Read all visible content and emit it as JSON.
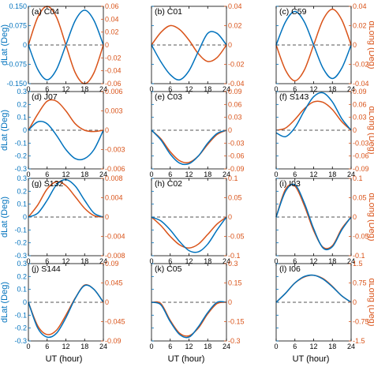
{
  "colors": {
    "dlat": "#0072BD",
    "dlong": "#D95319",
    "axis": "#000000",
    "zero": "#555555"
  },
  "labels": {
    "xlabel": "UT (hour)",
    "ylabel_left": "dLat (Deg)",
    "ylabel_right": "dLong (Deg)"
  },
  "chart_data": [
    {
      "type": "line",
      "title": "(a) C04",
      "x": [
        0,
        24
      ],
      "xticks": [
        "0",
        "6",
        "12",
        "18",
        "24"
      ],
      "left": {
        "ylim": [
          -0.15,
          0.15
        ],
        "ticks": [
          -0.15,
          -0.075,
          0,
          0.075,
          0.15
        ],
        "tick_labels": [
          "-0.150",
          "-0.075",
          "0",
          "0.075",
          "0.150"
        ]
      },
      "right": {
        "ylim": [
          -0.06,
          0.06
        ],
        "ticks": [
          -0.06,
          -0.04,
          -0.02,
          0,
          0.02,
          0.04,
          0.06
        ],
        "tick_labels": [
          "-0.06",
          "-0.04",
          "-0.02",
          "0",
          "0.02",
          "0.04",
          "0.06"
        ]
      },
      "dlat": {
        "x": [
          0,
          3,
          6,
          9,
          12,
          15,
          18,
          21,
          24
        ],
        "y": [
          0,
          -0.095,
          -0.135,
          -0.095,
          0,
          0.095,
          0.135,
          0.095,
          0
        ]
      },
      "dlong": {
        "x": [
          0,
          3,
          6,
          9,
          12,
          15,
          18,
          21,
          24
        ],
        "y": [
          0,
          0.043,
          0.06,
          0.043,
          0,
          -0.043,
          -0.06,
          -0.043,
          0
        ]
      }
    },
    {
      "type": "line",
      "title": "(b) C01",
      "x": [
        0,
        24
      ],
      "xticks": [
        "0",
        "6",
        "12",
        "18",
        "24"
      ],
      "left": {
        "ylim": [
          -0.15,
          0.15
        ],
        "ticks": [
          -0.15,
          -0.075,
          0,
          0.075,
          0.15
        ],
        "tick_labels": [
          "",
          "",
          "",
          "",
          ""
        ]
      },
      "right": {
        "ylim": [
          -0.04,
          0.04
        ],
        "ticks": [
          -0.04,
          -0.02,
          0,
          0.02,
          0.04
        ],
        "tick_labels": [
          "-0.04",
          "-0.02",
          "0",
          "0.02",
          "0.04"
        ]
      },
      "dlat": {
        "x": [
          0,
          3,
          6,
          9,
          12,
          15,
          18,
          21,
          24
        ],
        "y": [
          0,
          -0.065,
          -0.115,
          -0.135,
          -0.1,
          -0.025,
          0.045,
          0.045,
          0
        ]
      },
      "dlong": {
        "x": [
          0,
          3,
          6,
          9,
          12,
          15,
          18,
          21,
          24
        ],
        "y": [
          0,
          0.013,
          0.02,
          0.016,
          0.005,
          -0.009,
          -0.017,
          -0.013,
          0
        ]
      }
    },
    {
      "type": "line",
      "title": "(c) C59",
      "x": [
        0,
        24
      ],
      "xticks": [
        "0",
        "6",
        "12",
        "18",
        "24"
      ],
      "left": {
        "ylim": [
          -0.15,
          0.15
        ],
        "ticks": [
          -0.15,
          -0.075,
          0,
          0.075,
          0.15
        ],
        "tick_labels": [
          "",
          "",
          "",
          "",
          ""
        ]
      },
      "right": {
        "ylim": [
          -0.04,
          0.04
        ],
        "ticks": [
          -0.04,
          -0.02,
          0,
          0.02,
          0.04
        ],
        "tick_labels": [
          "-0.04",
          "-0.02",
          "0",
          "0.02",
          "0.04"
        ]
      },
      "dlat": {
        "x": [
          0,
          3,
          6,
          9,
          12,
          15,
          18,
          21,
          24
        ],
        "y": [
          0,
          0.09,
          0.13,
          0.09,
          0,
          -0.09,
          -0.13,
          -0.09,
          0
        ]
      },
      "dlong": {
        "x": [
          0,
          3,
          6,
          9,
          12,
          15,
          18,
          21,
          24
        ],
        "y": [
          0,
          -0.026,
          -0.037,
          -0.026,
          0,
          0.026,
          0.037,
          0.026,
          0
        ]
      }
    },
    {
      "type": "line",
      "title": "(d) J07",
      "x": [
        0,
        24
      ],
      "xticks": [
        "0",
        "6",
        "12",
        "18",
        "24"
      ],
      "left": {
        "ylim": [
          -0.3,
          0.3
        ],
        "ticks": [
          -0.3,
          -0.2,
          -0.1,
          0,
          0.1,
          0.2,
          0.3
        ],
        "tick_labels": [
          "-0.3",
          "-0.2",
          "-0.1",
          "0",
          "0.1",
          "0.2",
          "0.3"
        ]
      },
      "right": {
        "ylim": [
          -0.006,
          0.006
        ],
        "ticks": [
          -0.006,
          -0.003,
          0,
          0.003,
          0.006
        ],
        "tick_labels": [
          "-0.006",
          "-0.003",
          "0",
          "0.003",
          "0.006"
        ]
      },
      "dlat": {
        "x": [
          0,
          3,
          6,
          9,
          12,
          15,
          18,
          21,
          24
        ],
        "y": [
          0,
          0.065,
          0.05,
          -0.04,
          -0.15,
          -0.22,
          -0.22,
          -0.15,
          0
        ]
      },
      "dlong": {
        "x": [
          0,
          3,
          6,
          9,
          12,
          15,
          18,
          21,
          24
        ],
        "y": [
          0,
          0.0025,
          0.0045,
          0.0045,
          0.003,
          0.001,
          0,
          -0.0002,
          0
        ]
      }
    },
    {
      "type": "line",
      "title": "(e) C03",
      "x": [
        0,
        24
      ],
      "xticks": [
        "0",
        "6",
        "12",
        "18",
        "24"
      ],
      "left": {
        "ylim": [
          -0.3,
          0.3
        ],
        "ticks": [
          -0.3,
          -0.2,
          -0.1,
          0,
          0.1,
          0.2,
          0.3
        ],
        "tick_labels": [
          "",
          "",
          "",
          "",
          "",
          "",
          ""
        ]
      },
      "right": {
        "ylim": [
          -0.09,
          0.09
        ],
        "ticks": [
          -0.09,
          -0.06,
          -0.03,
          0,
          0.03,
          0.06,
          0.09
        ],
        "tick_labels": [
          "-0.09",
          "-0.06",
          "-0.03",
          "0",
          "0.03",
          "0.06",
          "0.09"
        ]
      },
      "dlat": {
        "x": [
          0,
          3,
          6,
          9,
          12,
          15,
          18,
          21,
          24
        ],
        "y": [
          0,
          -0.075,
          -0.185,
          -0.255,
          -0.26,
          -0.2,
          -0.1,
          -0.025,
          0
        ]
      },
      "dlong": {
        "x": [
          0,
          3,
          6,
          9,
          12,
          15,
          18,
          21,
          24
        ],
        "y": [
          0,
          -0.02,
          -0.05,
          -0.071,
          -0.075,
          -0.06,
          -0.033,
          -0.01,
          0
        ]
      }
    },
    {
      "type": "line",
      "title": "(f) S143",
      "x": [
        0,
        24
      ],
      "xticks": [
        "0",
        "6",
        "12",
        "18",
        "24"
      ],
      "left": {
        "ylim": [
          -0.3,
          0.3
        ],
        "ticks": [
          -0.3,
          -0.2,
          -0.1,
          0,
          0.1,
          0.2,
          0.3
        ],
        "tick_labels": [
          "",
          "",
          "",
          "",
          "",
          "",
          ""
        ]
      },
      "right": {
        "ylim": [
          -0.09,
          0.09
        ],
        "ticks": [
          -0.09,
          -0.06,
          -0.03,
          0,
          0.03,
          0.06,
          0.09
        ],
        "tick_labels": [
          "-0.09",
          "-0.06",
          "-0.03",
          "0",
          "0.03",
          "0.06",
          "0.09"
        ]
      },
      "dlat": {
        "x": [
          0,
          3,
          6,
          9,
          12,
          15,
          18,
          21,
          24
        ],
        "y": [
          -0.02,
          -0.05,
          0.02,
          0.15,
          0.26,
          0.29,
          0.22,
          0.09,
          0
        ]
      },
      "dlong": {
        "x": [
          0,
          3,
          6,
          9,
          12,
          15,
          18,
          21,
          24
        ],
        "y": [
          0,
          0.005,
          0.025,
          0.05,
          0.066,
          0.065,
          0.048,
          0.02,
          0
        ]
      }
    },
    {
      "type": "line",
      "title": "(g) S132",
      "x": [
        0,
        24
      ],
      "xticks": [
        "0",
        "6",
        "12",
        "18",
        "24"
      ],
      "left": {
        "ylim": [
          -0.3,
          0.3
        ],
        "ticks": [
          -0.3,
          -0.2,
          -0.1,
          0,
          0.1,
          0.2,
          0.3
        ],
        "tick_labels": [
          "-0.3",
          "-0.2",
          "-0.1",
          "0",
          "0.1",
          "0.2",
          "0.3"
        ]
      },
      "right": {
        "ylim": [
          -0.008,
          0.008
        ],
        "ticks": [
          -0.008,
          -0.004,
          0,
          0.004,
          0.008
        ],
        "tick_labels": [
          "-0.008",
          "-0.004",
          "0",
          "0.004",
          "0.008"
        ]
      },
      "dlat": {
        "x": [
          0,
          3,
          6,
          9,
          12,
          15,
          18,
          21,
          24
        ],
        "y": [
          0,
          0.03,
          0.13,
          0.25,
          0.29,
          0.24,
          0.13,
          0.03,
          0
        ]
      },
      "dlong": {
        "x": [
          0,
          3,
          6,
          9,
          12,
          15,
          18,
          21,
          24
        ],
        "y": [
          0,
          0.0025,
          0.0058,
          0.0073,
          0.0065,
          0.0042,
          0.0018,
          0.0003,
          0
        ]
      }
    },
    {
      "type": "line",
      "title": "(h) C02",
      "x": [
        0,
        24
      ],
      "xticks": [
        "0",
        "6",
        "12",
        "18",
        "24"
      ],
      "left": {
        "ylim": [
          -0.3,
          0.3
        ],
        "ticks": [
          -0.3,
          -0.2,
          -0.1,
          0,
          0.1,
          0.2,
          0.3
        ],
        "tick_labels": [
          "",
          "",
          "",
          "",
          "",
          "",
          ""
        ]
      },
      "right": {
        "ylim": [
          -0.1,
          0.1
        ],
        "ticks": [
          -0.1,
          -0.05,
          0,
          0.05,
          0.1
        ],
        "tick_labels": [
          "-0.1",
          "-0.05",
          "0",
          "0.05",
          "0.1"
        ]
      },
      "dlat": {
        "x": [
          0,
          3,
          6,
          9,
          12,
          15,
          18,
          21,
          24
        ],
        "y": [
          0,
          -0.03,
          -0.1,
          -0.19,
          -0.26,
          -0.27,
          -0.21,
          -0.1,
          0
        ]
      },
      "dlong": {
        "x": [
          0,
          3,
          6,
          9,
          12,
          15,
          18,
          21,
          24
        ],
        "y": [
          0,
          -0.022,
          -0.05,
          -0.072,
          -0.08,
          -0.07,
          -0.045,
          -0.018,
          0
        ]
      }
    },
    {
      "type": "line",
      "title": "(i) I03",
      "x": [
        0,
        24
      ],
      "xticks": [
        "0",
        "6",
        "12",
        "18",
        "24"
      ],
      "left": {
        "ylim": [
          -0.3,
          0.3
        ],
        "ticks": [
          -0.3,
          -0.2,
          -0.1,
          0,
          0.1,
          0.2,
          0.3
        ],
        "tick_labels": [
          "",
          "",
          "",
          "",
          "",
          "",
          ""
        ]
      },
      "right": {
        "ylim": [
          -0.1,
          0.1
        ],
        "ticks": [
          -0.1,
          -0.05,
          0,
          0.05,
          0.1
        ],
        "tick_labels": [
          "-0.1",
          "-0.05",
          "0",
          "0.05",
          "0.1"
        ]
      },
      "dlat": {
        "x": [
          0,
          3,
          6,
          9,
          12,
          15,
          18,
          21,
          24
        ],
        "y": [
          0,
          0.2,
          0.25,
          0.11,
          -0.09,
          -0.24,
          -0.23,
          -0.1,
          0
        ]
      },
      "dlong": {
        "x": [
          0,
          3,
          6,
          9,
          12,
          15,
          18,
          21,
          24
        ],
        "y": [
          0,
          0.072,
          0.08,
          0.03,
          -0.035,
          -0.078,
          -0.074,
          -0.03,
          0
        ]
      }
    },
    {
      "type": "line",
      "title": "(j) S144",
      "x": [
        0,
        24
      ],
      "xticks": [
        "0",
        "6",
        "12",
        "18",
        "24"
      ],
      "left": {
        "ylim": [
          -0.3,
          0.3
        ],
        "ticks": [
          -0.3,
          -0.2,
          -0.1,
          0,
          0.1,
          0.2,
          0.3
        ],
        "tick_labels": [
          "-0.3",
          "-0.2",
          "-0.1",
          "0",
          "0.1",
          "0.2",
          "0.3"
        ]
      },
      "right": {
        "ylim": [
          -0.09,
          0.09
        ],
        "ticks": [
          -0.09,
          -0.045,
          0,
          0.045,
          0.09
        ],
        "tick_labels": [
          "-0.09",
          "-0.045",
          "0",
          "0.045",
          "0.09"
        ]
      },
      "dlat": {
        "x": [
          0,
          3,
          6,
          9,
          12,
          15,
          18,
          21,
          24
        ],
        "y": [
          0,
          -0.2,
          -0.27,
          -0.24,
          -0.12,
          0.03,
          0.13,
          0.1,
          0
        ]
      },
      "dlong": {
        "x": [
          0,
          3,
          6,
          9,
          12,
          15,
          18,
          21,
          24
        ],
        "y": [
          0,
          -0.055,
          -0.075,
          -0.065,
          -0.03,
          0.01,
          0.04,
          0.03,
          0
        ]
      }
    },
    {
      "type": "line",
      "title": "(k) C05",
      "x": [
        0,
        24
      ],
      "xticks": [
        "0",
        "6",
        "12",
        "18",
        "24"
      ],
      "left": {
        "ylim": [
          -0.3,
          0.3
        ],
        "ticks": [
          -0.3,
          -0.2,
          -0.1,
          0,
          0.1,
          0.2,
          0.3
        ],
        "tick_labels": [
          "",
          "",
          "",
          "",
          "",
          "",
          ""
        ]
      },
      "right": {
        "ylim": [
          -0.3,
          0.3
        ],
        "ticks": [
          -0.3,
          -0.15,
          0,
          0.15,
          0.3
        ],
        "tick_labels": [
          "-0.3",
          "-0.15",
          "0",
          "0.15",
          "0.3"
        ]
      },
      "dlat": {
        "x": [
          0,
          3,
          6,
          9,
          12,
          15,
          18,
          21,
          24
        ],
        "y": [
          0,
          -0.02,
          -0.15,
          -0.25,
          -0.27,
          -0.19,
          -0.08,
          0,
          0
        ]
      },
      "dlong": {
        "x": [
          0,
          3,
          6,
          9,
          12,
          15,
          18,
          21,
          24
        ],
        "y": [
          0,
          -0.01,
          -0.14,
          -0.24,
          -0.26,
          -0.2,
          -0.09,
          -0.01,
          0
        ]
      }
    },
    {
      "type": "line",
      "title": "(l) I06",
      "x": [
        0,
        24
      ],
      "xticks": [
        "0",
        "6",
        "12",
        "18",
        "24"
      ],
      "left": {
        "ylim": [
          -0.3,
          0.3
        ],
        "ticks": [
          -0.3,
          -0.2,
          -0.1,
          0,
          0.1,
          0.2,
          0.3
        ],
        "tick_labels": [
          "",
          "",
          "",
          "",
          "",
          "",
          ""
        ]
      },
      "right": {
        "ylim": [
          -1.5,
          1.5
        ],
        "ticks": [
          -1.5,
          -0.75,
          0,
          0.75,
          1.5
        ],
        "tick_labels": [
          "-1.5",
          "-0.75",
          "0",
          "0.75",
          "1.5"
        ]
      },
      "dlat": {
        "x": [
          0,
          3,
          6,
          9,
          12,
          15,
          18,
          21,
          24
        ],
        "y": [
          0,
          0.07,
          0.15,
          0.2,
          0.21,
          0.18,
          0.12,
          0.05,
          0
        ]
      },
      "dlong": {
        "x": [
          0,
          3,
          6,
          9,
          12,
          15,
          18,
          21,
          24
        ],
        "y": [
          0,
          0.35,
          0.75,
          0.98,
          1.05,
          0.92,
          0.62,
          0.25,
          0
        ]
      }
    }
  ]
}
